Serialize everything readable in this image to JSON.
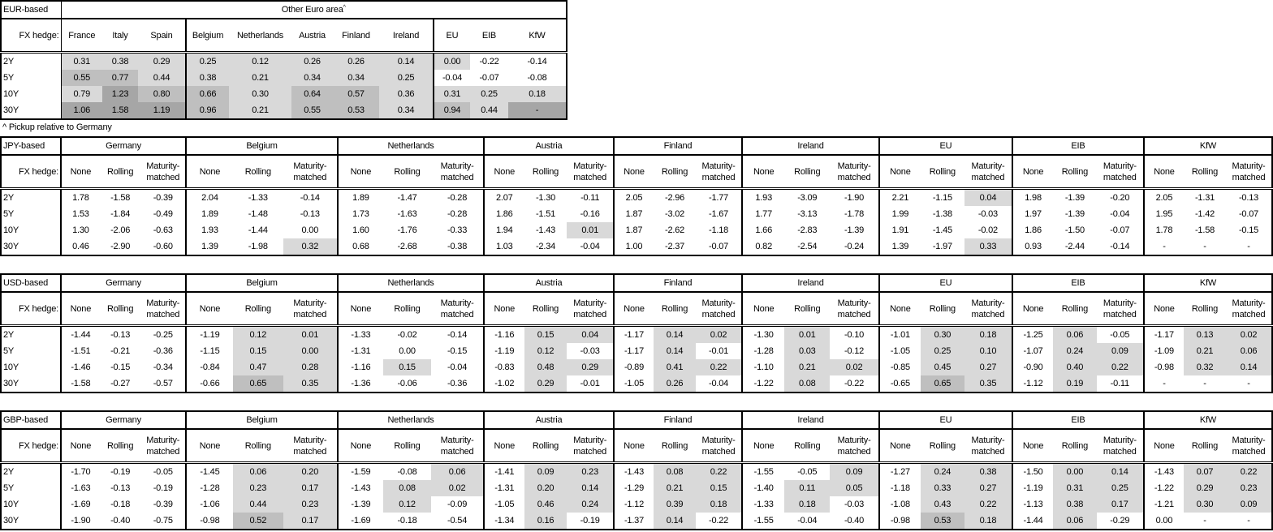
{
  "shade_colors": {
    "1": "#d9d9d9",
    "2": "#bfbfbf",
    "3": "#a6a6a6"
  },
  "eur_table": {
    "corner": "EUR-based",
    "super_header": "Other Euro area",
    "super_mark": "^",
    "hedge_label": "FX hedge:",
    "columns": [
      "France",
      "Italy",
      "Spain",
      "Belgium",
      "Netherlands",
      "Austria",
      "Finland",
      "Ireland",
      "EU",
      "EIB",
      "KfW"
    ],
    "rows": [
      {
        "tenor": "2Y",
        "values": [
          "0.31",
          "0.38",
          "0.29",
          "0.25",
          "0.12",
          "0.26",
          "0.26",
          "0.14",
          "0.00",
          "-0.22",
          "-0.14"
        ],
        "shade": [
          1,
          1,
          1,
          1,
          1,
          1,
          1,
          1,
          1,
          0,
          0
        ]
      },
      {
        "tenor": "5Y",
        "values": [
          "0.55",
          "0.77",
          "0.44",
          "0.38",
          "0.21",
          "0.34",
          "0.34",
          "0.25",
          "-0.04",
          "-0.07",
          "-0.08"
        ],
        "shade": [
          2,
          2,
          1,
          1,
          1,
          1,
          1,
          1,
          0,
          0,
          0
        ]
      },
      {
        "tenor": "10Y",
        "values": [
          "0.79",
          "1.23",
          "0.80",
          "0.66",
          "0.30",
          "0.64",
          "0.57",
          "0.36",
          "0.31",
          "0.25",
          "0.18"
        ],
        "shade": [
          1,
          3,
          2,
          2,
          1,
          2,
          2,
          1,
          1,
          1,
          1
        ]
      },
      {
        "tenor": "30Y",
        "values": [
          "1.06",
          "1.58",
          "1.19",
          "0.96",
          "0.21",
          "0.55",
          "0.53",
          "0.34",
          "0.94",
          "0.44",
          "-"
        ],
        "shade": [
          3,
          3,
          3,
          2,
          1,
          2,
          2,
          1,
          2,
          1,
          3
        ]
      }
    ]
  },
  "footnote": "^ Pickup relative to Germany",
  "hedged_tables": [
    {
      "corner": "JPY-based",
      "hedge_label": "FX hedge:",
      "groups": [
        "Germany",
        "Belgium",
        "Netherlands",
        "Austria",
        "Finland",
        "Ireland",
        "EU",
        "EIB",
        "KfW"
      ],
      "sub_columns": [
        "None",
        "Rolling",
        "Maturity-matched"
      ],
      "rows": [
        {
          "tenor": "2Y",
          "values": [
            "1.78",
            "-1.58",
            "-0.39",
            "2.04",
            "-1.33",
            "-0.14",
            "1.89",
            "-1.47",
            "-0.28",
            "2.07",
            "-1.30",
            "-0.11",
            "2.05",
            "-2.96",
            "-1.77",
            "1.93",
            "-3.09",
            "-1.90",
            "2.21",
            "-1.15",
            "0.04",
            "1.98",
            "-1.39",
            "-0.20",
            "2.05",
            "-1.31",
            "-0.13"
          ],
          "shade": [
            0,
            0,
            0,
            0,
            0,
            0,
            0,
            0,
            0,
            0,
            0,
            0,
            0,
            0,
            0,
            0,
            0,
            0,
            0,
            0,
            1,
            0,
            0,
            0,
            0,
            0,
            0
          ]
        },
        {
          "tenor": "5Y",
          "values": [
            "1.53",
            "-1.84",
            "-0.49",
            "1.89",
            "-1.48",
            "-0.13",
            "1.73",
            "-1.63",
            "-0.28",
            "1.86",
            "-1.51",
            "-0.16",
            "1.87",
            "-3.02",
            "-1.67",
            "1.77",
            "-3.13",
            "-1.78",
            "1.99",
            "-1.38",
            "-0.03",
            "1.97",
            "-1.39",
            "-0.04",
            "1.95",
            "-1.42",
            "-0.07"
          ],
          "shade": [
            0,
            0,
            0,
            0,
            0,
            0,
            0,
            0,
            0,
            0,
            0,
            0,
            0,
            0,
            0,
            0,
            0,
            0,
            0,
            0,
            0,
            0,
            0,
            0,
            0,
            0,
            0
          ]
        },
        {
          "tenor": "10Y",
          "values": [
            "1.30",
            "-2.06",
            "-0.63",
            "1.93",
            "-1.44",
            "0.00",
            "1.60",
            "-1.76",
            "-0.33",
            "1.94",
            "-1.43",
            "0.01",
            "1.87",
            "-2.62",
            "-1.18",
            "1.66",
            "-2.83",
            "-1.39",
            "1.91",
            "-1.45",
            "-0.02",
            "1.86",
            "-1.50",
            "-0.07",
            "1.78",
            "-1.58",
            "-0.15"
          ],
          "shade": [
            0,
            0,
            0,
            0,
            0,
            0,
            0,
            0,
            0,
            0,
            0,
            1,
            0,
            0,
            0,
            0,
            0,
            0,
            0,
            0,
            0,
            0,
            0,
            0,
            0,
            0,
            0
          ]
        },
        {
          "tenor": "30Y",
          "values": [
            "0.46",
            "-2.90",
            "-0.60",
            "1.39",
            "-1.98",
            "0.32",
            "0.68",
            "-2.68",
            "-0.38",
            "1.03",
            "-2.34",
            "-0.04",
            "1.00",
            "-2.37",
            "-0.07",
            "0.82",
            "-2.54",
            "-0.24",
            "1.39",
            "-1.97",
            "0.33",
            "0.93",
            "-2.44",
            "-0.14",
            "-",
            "-",
            "-"
          ],
          "shade": [
            0,
            0,
            0,
            0,
            0,
            1,
            0,
            0,
            0,
            0,
            0,
            0,
            0,
            0,
            0,
            0,
            0,
            0,
            0,
            0,
            1,
            0,
            0,
            0,
            0,
            0,
            0
          ]
        }
      ]
    },
    {
      "corner": "USD-based",
      "hedge_label": "FX hedge:",
      "groups": [
        "Germany",
        "Belgium",
        "Netherlands",
        "Austria",
        "Finland",
        "Ireland",
        "EU",
        "EIB",
        "KfW"
      ],
      "sub_columns": [
        "None",
        "Rolling",
        "Maturity-matched"
      ],
      "rows": [
        {
          "tenor": "2Y",
          "values": [
            "-1.44",
            "-0.13",
            "-0.25",
            "-1.19",
            "0.12",
            "0.01",
            "-1.33",
            "-0.02",
            "-0.14",
            "-1.16",
            "0.15",
            "0.04",
            "-1.17",
            "0.14",
            "0.02",
            "-1.30",
            "0.01",
            "-0.10",
            "-1.01",
            "0.30",
            "0.18",
            "-1.25",
            "0.06",
            "-0.05",
            "-1.17",
            "0.13",
            "0.02"
          ],
          "shade": [
            0,
            0,
            0,
            0,
            1,
            1,
            0,
            0,
            0,
            0,
            1,
            1,
            0,
            1,
            1,
            0,
            1,
            0,
            0,
            1,
            1,
            0,
            1,
            0,
            0,
            1,
            1
          ]
        },
        {
          "tenor": "5Y",
          "values": [
            "-1.51",
            "-0.21",
            "-0.36",
            "-1.15",
            "0.15",
            "0.00",
            "-1.31",
            "0.00",
            "-0.15",
            "-1.19",
            "0.12",
            "-0.03",
            "-1.17",
            "0.14",
            "-0.01",
            "-1.28",
            "0.03",
            "-0.12",
            "-1.05",
            "0.25",
            "0.10",
            "-1.07",
            "0.24",
            "0.09",
            "-1.09",
            "0.21",
            "0.06"
          ],
          "shade": [
            0,
            0,
            0,
            0,
            1,
            1,
            0,
            0,
            0,
            0,
            1,
            0,
            0,
            1,
            0,
            0,
            1,
            0,
            0,
            1,
            1,
            0,
            1,
            1,
            0,
            1,
            1
          ]
        },
        {
          "tenor": "10Y",
          "values": [
            "-1.46",
            "-0.15",
            "-0.34",
            "-0.84",
            "0.47",
            "0.28",
            "-1.16",
            "0.15",
            "-0.04",
            "-0.83",
            "0.48",
            "0.29",
            "-0.89",
            "0.41",
            "0.22",
            "-1.10",
            "0.21",
            "0.02",
            "-0.85",
            "0.45",
            "0.27",
            "-0.90",
            "0.40",
            "0.22",
            "-0.98",
            "0.32",
            "0.14"
          ],
          "shade": [
            0,
            0,
            0,
            0,
            1,
            1,
            0,
            1,
            0,
            0,
            1,
            1,
            0,
            1,
            1,
            0,
            1,
            1,
            0,
            1,
            1,
            0,
            1,
            1,
            0,
            1,
            1
          ]
        },
        {
          "tenor": "30Y",
          "values": [
            "-1.58",
            "-0.27",
            "-0.57",
            "-0.66",
            "0.65",
            "0.35",
            "-1.36",
            "-0.06",
            "-0.36",
            "-1.02",
            "0.29",
            "-0.01",
            "-1.05",
            "0.26",
            "-0.04",
            "-1.22",
            "0.08",
            "-0.22",
            "-0.65",
            "0.65",
            "0.35",
            "-1.12",
            "0.19",
            "-0.11",
            "-",
            "-",
            "-"
          ],
          "shade": [
            0,
            0,
            0,
            0,
            2,
            1,
            0,
            0,
            0,
            0,
            1,
            0,
            0,
            1,
            0,
            0,
            1,
            0,
            0,
            2,
            1,
            0,
            1,
            0,
            0,
            0,
            0
          ]
        }
      ]
    },
    {
      "corner": "GBP-based",
      "hedge_label": "FX hedge:",
      "groups": [
        "Germany",
        "Belgium",
        "Netherlands",
        "Austria",
        "Finland",
        "Ireland",
        "EU",
        "EIB",
        "KfW"
      ],
      "sub_columns": [
        "None",
        "Rolling",
        "Maturity-matched"
      ],
      "rows": [
        {
          "tenor": "2Y",
          "values": [
            "-1.70",
            "-0.19",
            "-0.05",
            "-1.45",
            "0.06",
            "0.20",
            "-1.59",
            "-0.08",
            "0.06",
            "-1.41",
            "0.09",
            "0.23",
            "-1.43",
            "0.08",
            "0.22",
            "-1.55",
            "-0.05",
            "0.09",
            "-1.27",
            "0.24",
            "0.38",
            "-1.50",
            "0.00",
            "0.14",
            "-1.43",
            "0.07",
            "0.22"
          ],
          "shade": [
            0,
            0,
            0,
            0,
            1,
            1,
            0,
            0,
            1,
            0,
            1,
            1,
            0,
            1,
            1,
            0,
            0,
            1,
            0,
            1,
            1,
            0,
            1,
            1,
            0,
            1,
            1
          ]
        },
        {
          "tenor": "5Y",
          "values": [
            "-1.63",
            "-0.13",
            "-0.19",
            "-1.28",
            "0.23",
            "0.17",
            "-1.43",
            "0.08",
            "0.02",
            "-1.31",
            "0.20",
            "0.14",
            "-1.29",
            "0.21",
            "0.15",
            "-1.40",
            "0.11",
            "0.05",
            "-1.18",
            "0.33",
            "0.27",
            "-1.19",
            "0.31",
            "0.25",
            "-1.22",
            "0.29",
            "0.23"
          ],
          "shade": [
            0,
            0,
            0,
            0,
            1,
            1,
            0,
            1,
            1,
            0,
            1,
            1,
            0,
            1,
            1,
            0,
            1,
            1,
            0,
            1,
            1,
            0,
            1,
            1,
            0,
            1,
            1
          ]
        },
        {
          "tenor": "10Y",
          "values": [
            "-1.69",
            "-0.18",
            "-0.39",
            "-1.06",
            "0.44",
            "0.23",
            "-1.39",
            "0.12",
            "-0.09",
            "-1.05",
            "0.46",
            "0.24",
            "-1.12",
            "0.39",
            "0.18",
            "-1.33",
            "0.18",
            "-0.03",
            "-1.08",
            "0.43",
            "0.22",
            "-1.13",
            "0.38",
            "0.17",
            "-1.21",
            "0.30",
            "0.09"
          ],
          "shade": [
            0,
            0,
            0,
            0,
            1,
            1,
            0,
            1,
            0,
            0,
            1,
            1,
            0,
            1,
            1,
            0,
            1,
            0,
            0,
            1,
            1,
            0,
            1,
            1,
            0,
            1,
            1
          ]
        },
        {
          "tenor": "30Y",
          "values": [
            "-1.90",
            "-0.40",
            "-0.75",
            "-0.98",
            "0.52",
            "0.17",
            "-1.69",
            "-0.18",
            "-0.54",
            "-1.34",
            "0.16",
            "-0.19",
            "-1.37",
            "0.14",
            "-0.22",
            "-1.55",
            "-0.04",
            "-0.40",
            "-0.98",
            "0.53",
            "0.18",
            "-1.44",
            "0.06",
            "-0.29",
            "0.00",
            "-",
            "-"
          ],
          "shade": [
            0,
            0,
            0,
            0,
            2,
            1,
            0,
            0,
            0,
            0,
            1,
            0,
            0,
            1,
            0,
            0,
            0,
            0,
            0,
            2,
            1,
            0,
            1,
            0,
            0,
            0,
            0
          ]
        }
      ]
    }
  ]
}
